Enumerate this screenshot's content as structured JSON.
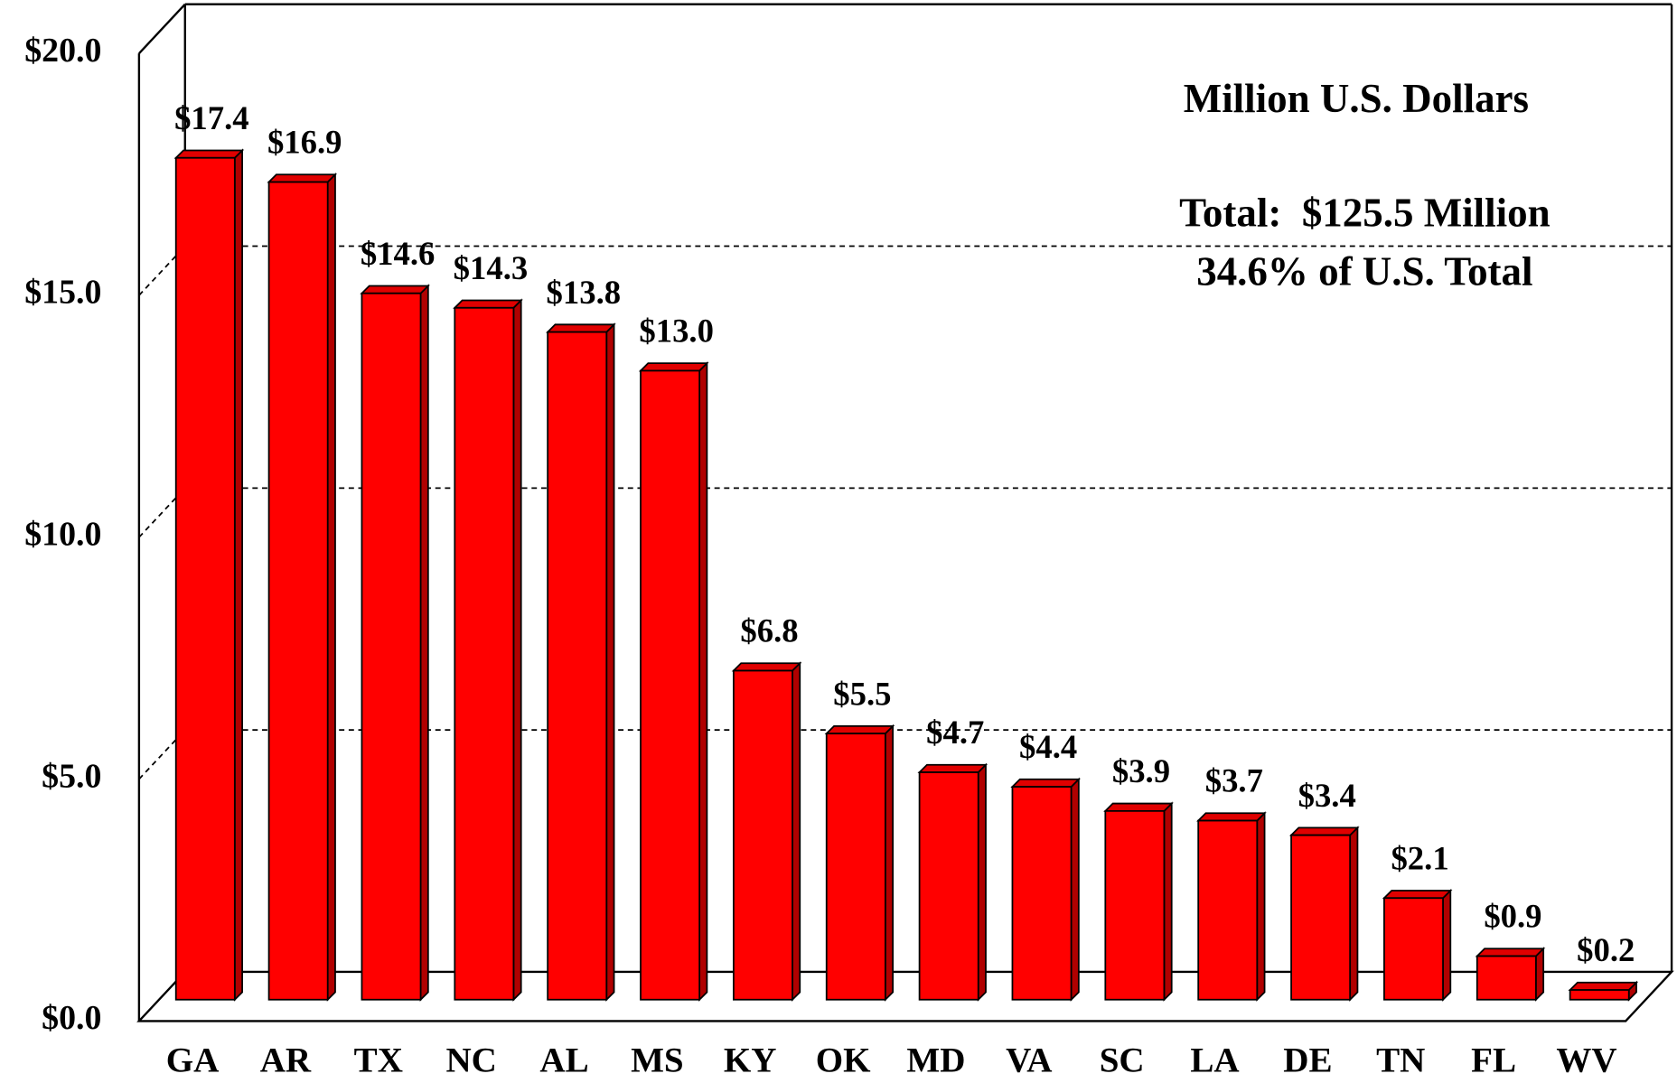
{
  "chart_data": {
    "type": "bar",
    "annotations": [
      "Million U.S. Dollars",
      "Total:  $125.5 Million",
      "34.6% of U.S. Total"
    ],
    "categories": [
      "GA",
      "AR",
      "TX",
      "NC",
      "AL",
      "MS",
      "KY",
      "OK",
      "MD",
      "VA",
      "SC",
      "LA",
      "DE",
      "TN",
      "FL",
      "WV"
    ],
    "values": [
      17.4,
      16.9,
      14.6,
      14.3,
      13.8,
      13.0,
      6.8,
      5.5,
      4.7,
      4.4,
      3.9,
      3.7,
      3.4,
      2.1,
      0.9,
      0.2
    ],
    "value_labels": [
      "$17.4",
      "$16.9",
      "$14.6",
      "$14.3",
      "$13.8",
      "$13.0",
      "$6.8",
      "$5.5",
      "$4.7",
      "$4.4",
      "$3.9",
      "$3.7",
      "$3.4",
      "$2.1",
      "$0.9",
      "$0.2"
    ],
    "color": "#ff0000",
    "ylim": [
      0,
      20
    ],
    "yticks": [
      {
        "value": 0,
        "label": "$0.0"
      },
      {
        "value": 5,
        "label": "$5.0"
      },
      {
        "value": 10,
        "label": "$10.0"
      },
      {
        "value": 15,
        "label": "$15.0"
      },
      {
        "value": 20,
        "label": "$20.0"
      }
    ],
    "grid": true
  }
}
